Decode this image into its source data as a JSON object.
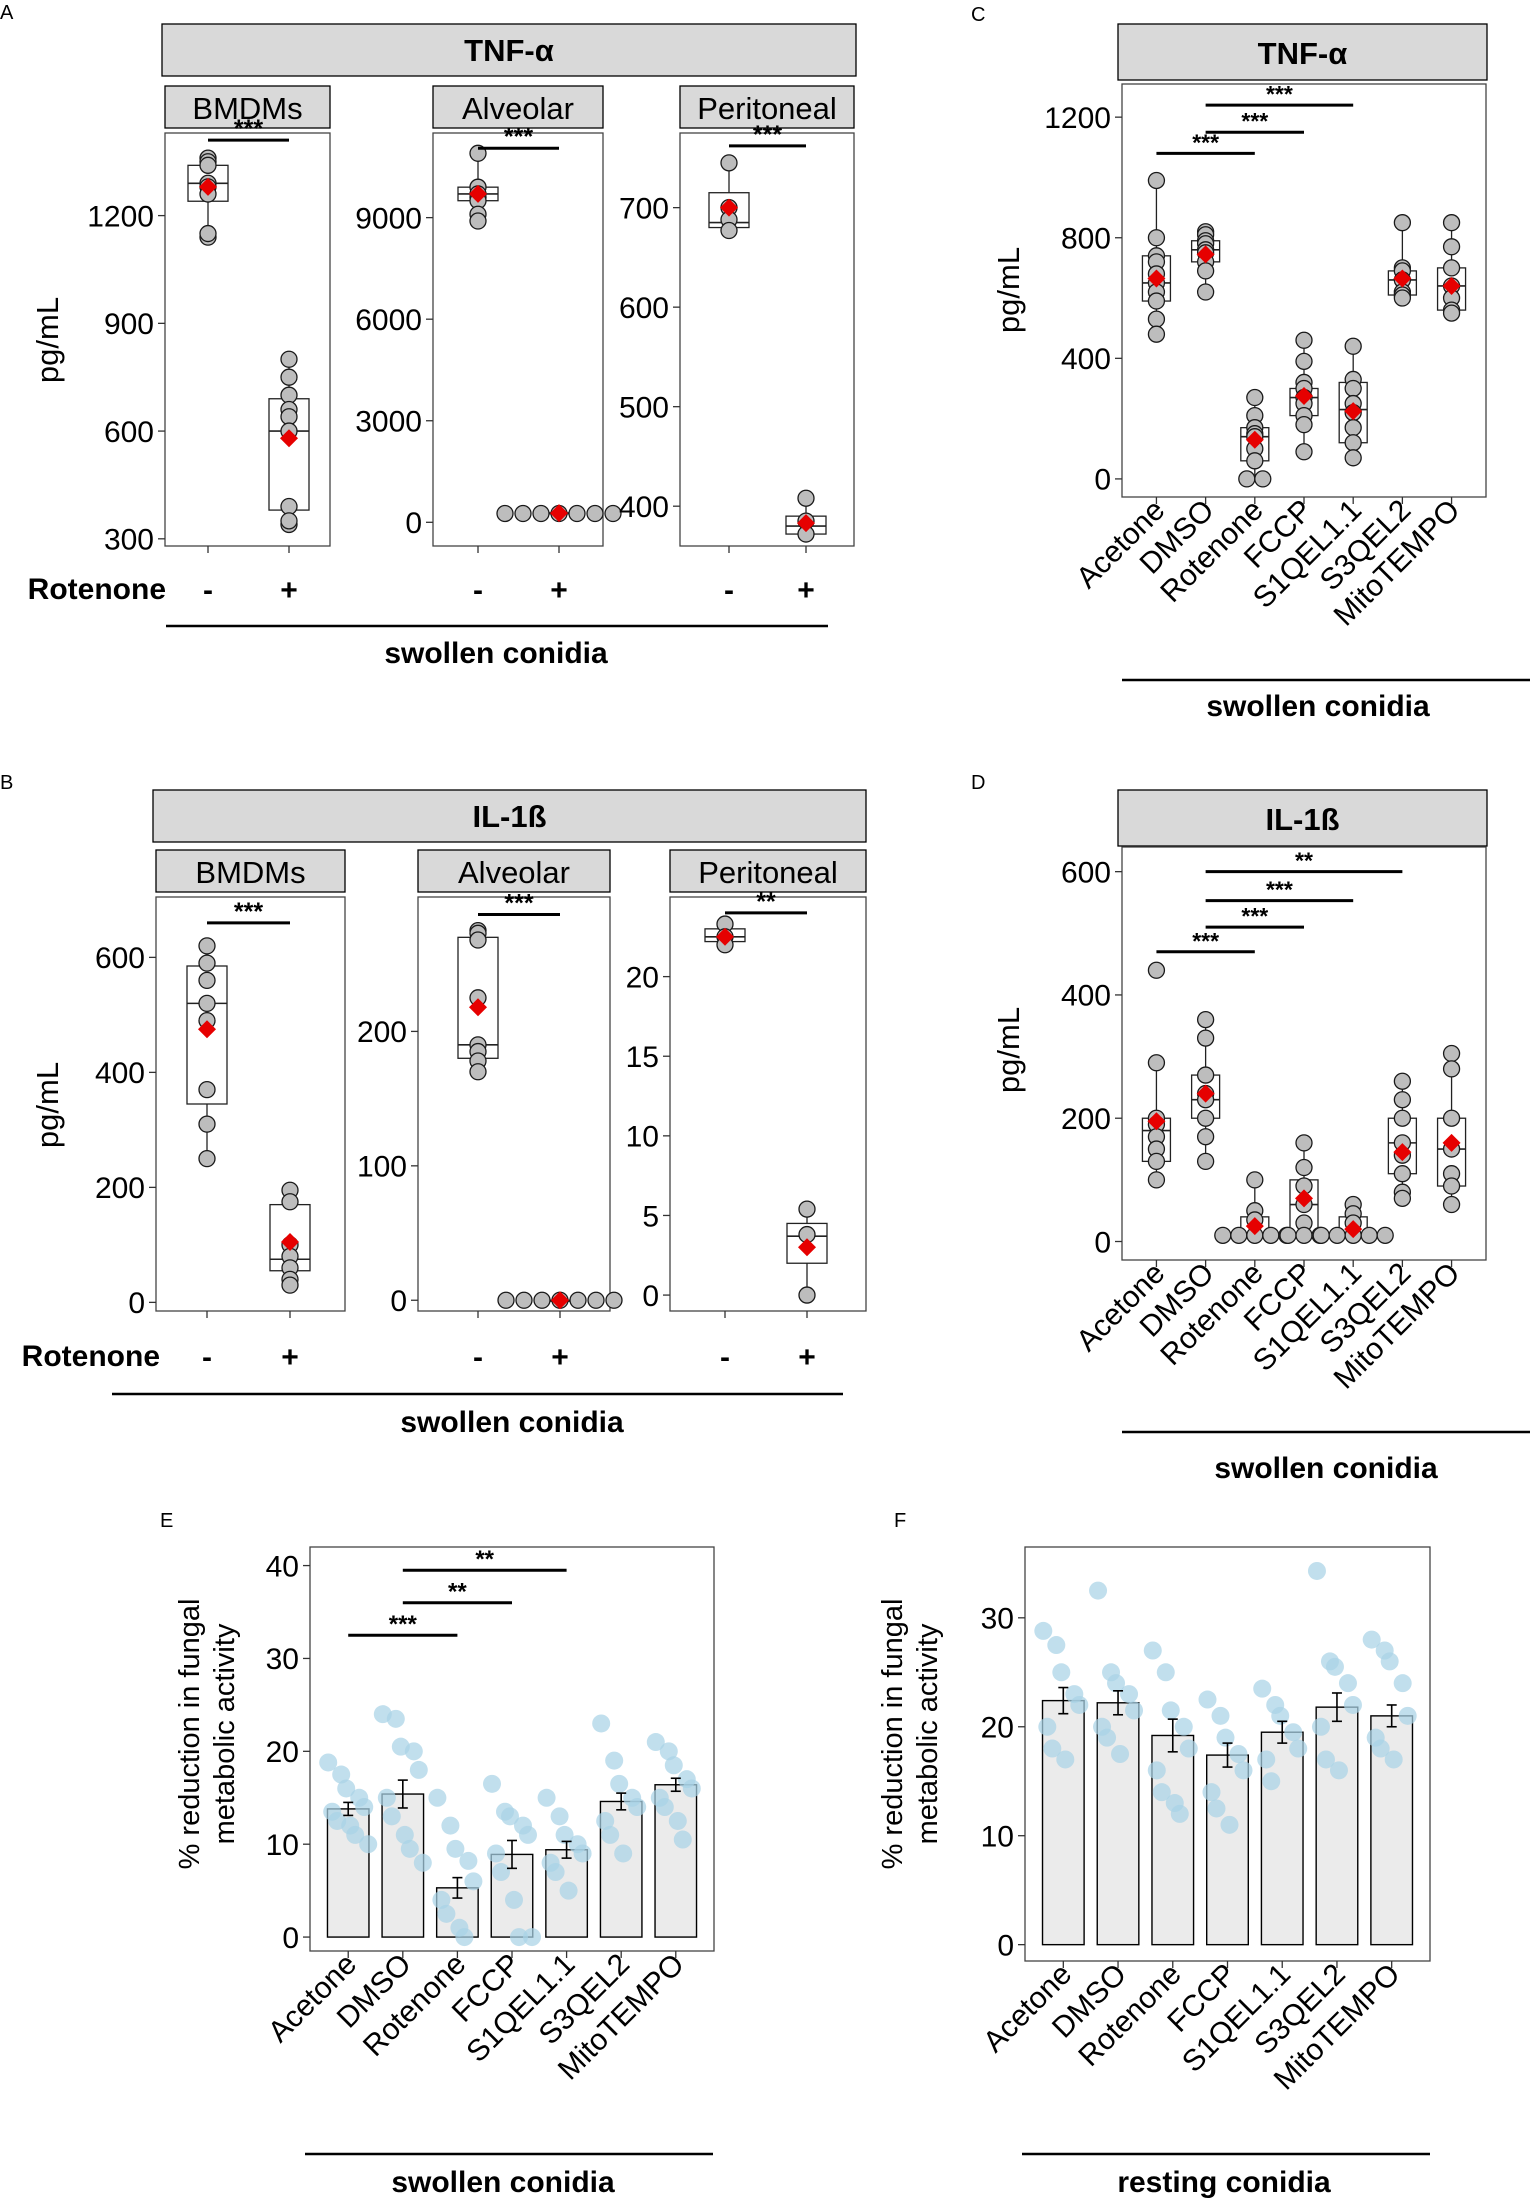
{
  "panel_letters": [
    "A",
    "B",
    "C",
    "D",
    "E",
    "F"
  ],
  "common": {
    "ylabel": "pg/mL",
    "rotenone_label": "Rotenone",
    "minus": "-",
    "plus": "+",
    "swollen": "swollen conidia",
    "resting": "resting conidia",
    "ylabel_metab_1": "% reduction in fungal",
    "ylabel_metab_2": "metabolic activity",
    "treatments": [
      "Acetone",
      "DMSO",
      "Rotenone",
      "FCCP",
      "S1QEL1.1",
      "S3QEL2",
      "MitoTEMPO"
    ]
  },
  "colors": {
    "strip": "#d9d9d9",
    "point": "#bdbdbd",
    "mean": "#e60000",
    "bar": "#ebebeb",
    "jitter": "#a9d3e6"
  },
  "chart_data": [
    {
      "id": "A",
      "type": "box",
      "title": "TNF-α",
      "ylabel": "pg/mL",
      "xlabel": "swollen conidia",
      "categories": [
        "-",
        "+"
      ],
      "x_title": "Rotenone",
      "facets": [
        {
          "name": "BMDMs",
          "ylim": [
            280,
            1430
          ],
          "yticks": [
            300,
            600,
            900,
            1200
          ],
          "groups": [
            {
              "box": [
                1140,
                1240,
                1290,
                1340,
                1360
              ],
              "mean": 1280,
              "points": [
                1360,
                1350,
                1340,
                1290,
                1280,
                1260,
                1140,
                1150
              ]
            },
            {
              "box": [
                340,
                380,
                600,
                690,
                800
              ],
              "mean": 580,
              "points": [
                800,
                750,
                700,
                660,
                640,
                600,
                390,
                340,
                350
              ]
            }
          ],
          "sig": [
            {
              "from": 0,
              "to": 1,
              "label": "***",
              "y": 1410
            }
          ]
        },
        {
          "name": "Alveolar",
          "ylim": [
            -700,
            11500
          ],
          "yticks": [
            0,
            3000,
            6000,
            9000
          ],
          "groups": [
            {
              "box": [
                8900,
                9500,
                9700,
                9900,
                10900
              ],
              "mean": 9700,
              "points": [
                10900,
                9900,
                9700,
                9600,
                9500,
                9100,
                8900
              ]
            },
            {
              "box": [
                250,
                260,
                270,
                280,
                290
              ],
              "mean": 270,
              "points": [
                260,
                260,
                260,
                260,
                260,
                260,
                260
              ]
            }
          ],
          "sig": [
            {
              "from": 0,
              "to": 1,
              "label": "***",
              "y": 11050
            }
          ]
        },
        {
          "name": "Peritoneal",
          "ylim": [
            360,
            775
          ],
          "yticks": [
            400,
            500,
            600,
            700
          ],
          "groups": [
            {
              "box": [
                677,
                680,
                685,
                715,
                745
              ],
              "mean": 700,
              "points": [
                745,
                700,
                688,
                677
              ]
            },
            {
              "box": [
                370,
                372,
                380,
                390,
                408
              ],
              "mean": 383,
              "points": [
                408,
                385,
                372
              ]
            }
          ],
          "sig": [
            {
              "from": 0,
              "to": 1,
              "label": "***",
              "y": 762
            }
          ]
        }
      ]
    },
    {
      "id": "B",
      "type": "box",
      "title": "IL-1ß",
      "ylabel": "pg/mL",
      "xlabel": "swollen conidia",
      "categories": [
        "-",
        "+"
      ],
      "x_title": "Rotenone",
      "facets": [
        {
          "name": "BMDMs",
          "ylim": [
            -15,
            705
          ],
          "yticks": [
            0,
            200,
            400,
            600
          ],
          "groups": [
            {
              "box": [
                250,
                345,
                520,
                585,
                620
              ],
              "mean": 475,
              "points": [
                620,
                590,
                560,
                520,
                490,
                370,
                310,
                250
              ]
            },
            {
              "box": [
                30,
                55,
                75,
                170,
                195
              ],
              "mean": 105,
              "points": [
                195,
                175,
                100,
                80,
                60,
                40,
                30
              ]
            }
          ],
          "sig": [
            {
              "from": 0,
              "to": 1,
              "label": "***",
              "y": 660
            }
          ]
        },
        {
          "name": "Alveolar",
          "ylim": [
            -8,
            300
          ],
          "yticks": [
            0,
            100,
            200
          ],
          "groups": [
            {
              "box": [
                170,
                180,
                190,
                270,
                275
              ],
              "mean": 218,
              "points": [
                275,
                273,
                268,
                225,
                190,
                185,
                178,
                170
              ]
            },
            {
              "box": [
                0,
                0,
                0,
                0,
                0
              ],
              "mean": 0,
              "points": [
                0,
                0,
                0,
                0,
                0,
                0,
                0
              ]
            }
          ],
          "sig": [
            {
              "from": 0,
              "to": 1,
              "label": "***",
              "y": 287
            }
          ]
        },
        {
          "name": "Peritoneal",
          "ylim": [
            -1,
            25
          ],
          "yticks": [
            0,
            5,
            10,
            15,
            20
          ],
          "groups": [
            {
              "box": [
                22,
                22.2,
                22.5,
                23,
                23.3
              ],
              "mean": 22.5,
              "points": [
                23.3,
                22.5,
                22
              ]
            },
            {
              "box": [
                0,
                2,
                3.7,
                4.5,
                5.4
              ],
              "mean": 3,
              "points": [
                5.4,
                3.8,
                0
              ]
            }
          ],
          "sig": [
            {
              "from": 0,
              "to": 1,
              "label": "**",
              "y": 24
            }
          ]
        }
      ]
    },
    {
      "id": "C",
      "type": "box",
      "title": "TNF-α",
      "ylabel": "pg/mL",
      "xlabel": "swollen conidia",
      "categories": [
        "Acetone",
        "DMSO",
        "Rotenone",
        "FCCP",
        "S1QEL1.1",
        "S3QEL2",
        "MitoTEMPO"
      ],
      "ylim": [
        -60,
        1310
      ],
      "yticks": [
        0,
        400,
        800,
        1200
      ],
      "groups": [
        {
          "box": [
            480,
            590,
            650,
            740,
            990
          ],
          "mean": 665,
          "points": [
            990,
            800,
            740,
            720,
            680,
            650,
            620,
            590,
            530,
            480
          ]
        },
        {
          "box": [
            620,
            720,
            760,
            790,
            820
          ],
          "mean": 745,
          "points": [
            820,
            810,
            790,
            780,
            760,
            750,
            720,
            690,
            620
          ]
        },
        {
          "box": [
            0,
            60,
            140,
            170,
            270
          ],
          "mean": 130,
          "points": [
            270,
            210,
            170,
            150,
            140,
            100,
            60,
            0,
            0
          ]
        },
        {
          "box": [
            90,
            210,
            270,
            300,
            460
          ],
          "mean": 275,
          "points": [
            460,
            390,
            320,
            300,
            270,
            250,
            210,
            180,
            90
          ]
        },
        {
          "box": [
            60,
            120,
            230,
            320,
            440
          ],
          "mean": 225,
          "points": [
            440,
            330,
            300,
            250,
            220,
            170,
            120,
            70
          ]
        },
        {
          "box": [
            600,
            610,
            660,
            690,
            850
          ],
          "mean": 665,
          "points": [
            850,
            700,
            690,
            660,
            620,
            610,
            600
          ]
        },
        {
          "box": [
            550,
            560,
            640,
            700,
            850
          ],
          "mean": 640,
          "points": [
            850,
            770,
            700,
            640,
            600,
            560,
            550
          ]
        }
      ],
      "sig": [
        {
          "from": 0,
          "to": 2,
          "label": "***",
          "y": 1080
        },
        {
          "from": 1,
          "to": 3,
          "label": "***",
          "y": 1150
        },
        {
          "from": 1,
          "to": 4,
          "label": "***",
          "y": 1240
        }
      ]
    },
    {
      "id": "D",
      "type": "box",
      "title": "IL-1ß",
      "ylabel": "pg/mL",
      "xlabel": "swollen conidia",
      "categories": [
        "Acetone",
        "DMSO",
        "Rotenone",
        "FCCP",
        "S1QEL1.1",
        "S3QEL2",
        "MitoTEMPO"
      ],
      "ylim": [
        -30,
        640
      ],
      "yticks": [
        0,
        200,
        400,
        600
      ],
      "groups": [
        {
          "box": [
            100,
            130,
            180,
            200,
            290
          ],
          "mean": 195,
          "points": [
            440,
            290,
            200,
            190,
            170,
            150,
            130,
            100
          ]
        },
        {
          "box": [
            130,
            200,
            230,
            270,
            360
          ],
          "mean": 240,
          "points": [
            360,
            330,
            270,
            240,
            230,
            200,
            170,
            130
          ]
        },
        {
          "box": [
            10,
            10,
            10,
            40,
            100
          ],
          "mean": 25,
          "points": [
            100,
            50,
            35,
            10,
            10,
            10,
            10,
            10
          ]
        },
        {
          "box": [
            10,
            10,
            60,
            100,
            160
          ],
          "mean": 70,
          "points": [
            160,
            120,
            90,
            60,
            30,
            10,
            10,
            10
          ]
        },
        {
          "box": [
            10,
            10,
            10,
            40,
            60
          ],
          "mean": 20,
          "points": [
            60,
            45,
            30,
            10,
            10,
            10,
            10,
            10
          ]
        },
        {
          "box": [
            70,
            110,
            160,
            200,
            260
          ],
          "mean": 145,
          "points": [
            260,
            230,
            200,
            160,
            140,
            110,
            80,
            70
          ]
        },
        {
          "box": [
            60,
            90,
            150,
            200,
            305
          ],
          "mean": 160,
          "points": [
            305,
            280,
            200,
            150,
            110,
            90,
            60
          ]
        }
      ],
      "sig": [
        {
          "from": 0,
          "to": 2,
          "label": "***",
          "y": 470
        },
        {
          "from": 1,
          "to": 3,
          "label": "***",
          "y": 510
        },
        {
          "from": 1,
          "to": 4,
          "label": "***",
          "y": 553
        },
        {
          "from": 1,
          "to": 5,
          "label": "**",
          "y": 600
        }
      ]
    },
    {
      "id": "E",
      "type": "bar",
      "title": "",
      "ylabel": "% reduction in fungal metabolic activity",
      "xlabel": "swollen conidia",
      "categories": [
        "Acetone",
        "DMSO",
        "Rotenone",
        "FCCP",
        "S1QEL1.1",
        "S3QEL2",
        "MitoTEMPO"
      ],
      "ylim": [
        -1.5,
        42
      ],
      "yticks": [
        0,
        10,
        20,
        30,
        40
      ],
      "values": [
        13.8,
        15.4,
        5.3,
        8.9,
        9.4,
        14.6,
        16.4
      ],
      "errors": [
        0.7,
        1.5,
        1.1,
        1.5,
        0.9,
        0.9,
        0.7
      ],
      "points": [
        [
          18.8,
          17.5,
          16,
          15,
          14,
          13.5,
          12.5,
          12,
          11,
          10
        ],
        [
          24,
          23.5,
          20.5,
          20,
          18,
          15,
          13,
          11,
          9.5,
          8
        ],
        [
          15,
          12,
          9.5,
          8.2,
          6,
          4,
          2.5,
          1,
          0
        ],
        [
          16.5,
          13.5,
          13,
          12,
          11,
          9,
          7,
          4,
          0,
          0
        ],
        [
          15,
          13,
          11,
          10,
          9,
          8,
          7,
          5
        ],
        [
          23,
          19,
          16.5,
          15,
          14,
          12.5,
          11,
          9
        ],
        [
          21,
          20,
          18.5,
          17,
          16,
          15,
          14,
          12.5,
          10.5
        ]
      ],
      "sig": [
        {
          "from": 0,
          "to": 2,
          "label": "***",
          "y": 32.5
        },
        {
          "from": 1,
          "to": 3,
          "label": "**",
          "y": 36
        },
        {
          "from": 1,
          "to": 4,
          "label": "**",
          "y": 39.5
        }
      ]
    },
    {
      "id": "F",
      "type": "bar",
      "title": "",
      "ylabel": "% reduction in fungal metabolic activity",
      "xlabel": "resting conidia",
      "categories": [
        "Acetone",
        "DMSO",
        "Rotenone",
        "FCCP",
        "S1QEL1.1",
        "S3QEL2",
        "MitoTEMPO"
      ],
      "ylim": [
        -1.5,
        36.5
      ],
      "yticks": [
        0,
        10,
        20,
        30
      ],
      "values": [
        22.4,
        22.2,
        19.2,
        17.4,
        19.5,
        21.8,
        21
      ],
      "errors": [
        1.2,
        1.1,
        1.5,
        1.1,
        1.0,
        1.3,
        1.0
      ],
      "points": [
        [
          28.8,
          27.5,
          25,
          23,
          22,
          20,
          18,
          17
        ],
        [
          32.5,
          25,
          24,
          23,
          21.5,
          20,
          19,
          17.5
        ],
        [
          27,
          25,
          21.5,
          20,
          18,
          16,
          14,
          13,
          12
        ],
        [
          22.5,
          21,
          19,
          17.5,
          16,
          14,
          12.5,
          11
        ],
        [
          23.5,
          22,
          21,
          19.5,
          18,
          17,
          15
        ],
        [
          34.3,
          26,
          25.5,
          24,
          22,
          20,
          17,
          16
        ],
        [
          28,
          27,
          26,
          24,
          21,
          19,
          18,
          17
        ]
      ],
      "sig": []
    }
  ]
}
